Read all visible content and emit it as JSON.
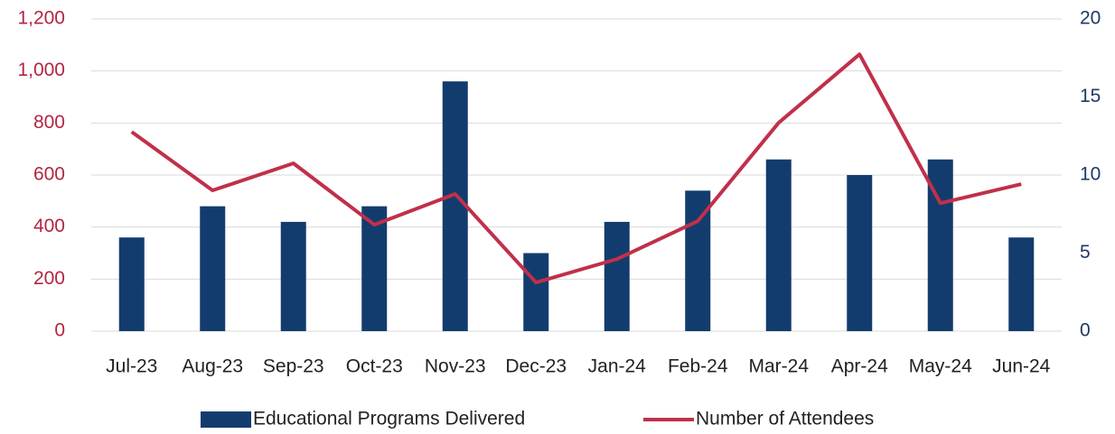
{
  "chart_data": {
    "type": "bar-line",
    "categories": [
      "Jul-23",
      "Aug-23",
      "Sep-23",
      "Oct-23",
      "Nov-23",
      "Dec-23",
      "Jan-24",
      "Feb-24",
      "Mar-24",
      "Apr-24",
      "May-24",
      "Jun-24"
    ],
    "series": [
      {
        "name": "Educational Programs Delivered",
        "type": "bar",
        "axis": "y2",
        "color": "#133c6e",
        "values": [
          6,
          8,
          7,
          8,
          16,
          5,
          7,
          9,
          11,
          10,
          11,
          6
        ]
      },
      {
        "name": "Number of Attendees",
        "type": "line",
        "color": "#c0304a",
        "values": [
          766,
          541,
          645,
          409,
          527,
          187,
          277,
          423,
          801,
          1064,
          492,
          565
        ]
      }
    ],
    "ylim": [
      0,
      1200
    ],
    "yticks": [
      0,
      200,
      400,
      600,
      800,
      {
        "value": 1000,
        "label": "1,000"
      },
      {
        "value": 1200,
        "label": "1,200"
      }
    ],
    "y2lim": [
      0,
      20
    ],
    "y2ticks": [
      0,
      5,
      10,
      15,
      20
    ],
    "ytick_color": "#b5253f",
    "y2tick_color": "#1f3864",
    "grid": true,
    "legend": "bottom"
  }
}
